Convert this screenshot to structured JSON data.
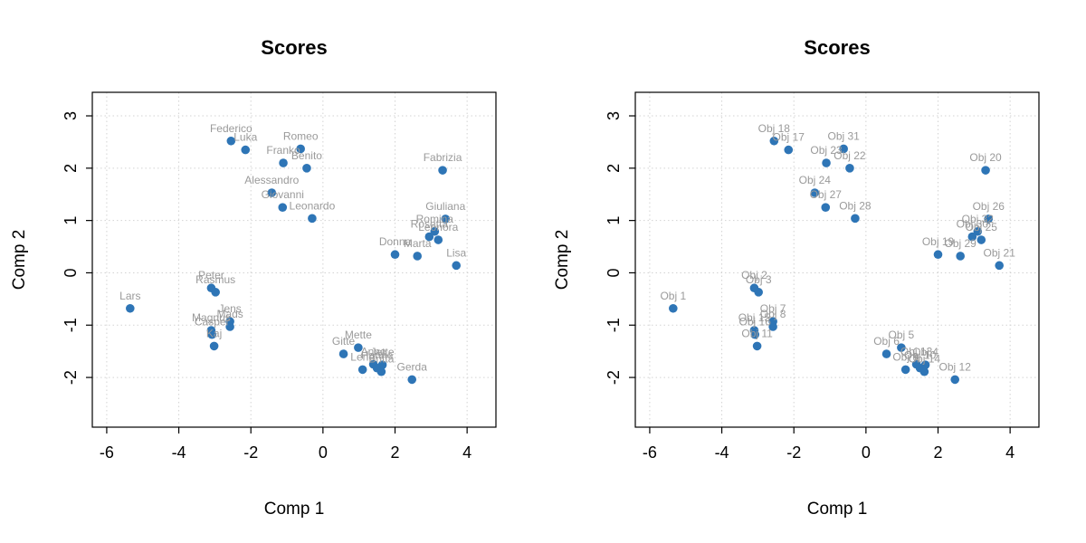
{
  "chart_data": [
    {
      "type": "scatter",
      "title": "Scores",
      "xlabel": "Comp 1",
      "ylabel": "Comp 2",
      "xlim": [
        -6.4,
        4.8
      ],
      "ylim": [
        -2.95,
        3.45
      ],
      "xticks": [
        -6,
        -4,
        -2,
        0,
        2,
        4
      ],
      "yticks": [
        -2,
        -1,
        0,
        1,
        2,
        3
      ],
      "grid": true,
      "point_color": "#2e75b6",
      "label_color": "#9a9a9a",
      "points": [
        {
          "label": "Lars",
          "x": -5.35,
          "y": -0.68
        },
        {
          "label": "Peter",
          "x": -3.1,
          "y": -0.29
        },
        {
          "label": "Rasmus",
          "x": -2.98,
          "y": -0.37
        },
        {
          "label": "Jens",
          "x": -2.58,
          "y": -0.93
        },
        {
          "label": "Mads",
          "x": -2.58,
          "y": -1.03
        },
        {
          "label": "Magnus",
          "x": -3.1,
          "y": -1.1
        },
        {
          "label": "Casper",
          "x": -3.08,
          "y": -1.18
        },
        {
          "label": "Kaj",
          "x": -3.02,
          "y": -1.4
        },
        {
          "label": "Federico",
          "x": -2.55,
          "y": 2.52
        },
        {
          "label": "Luka",
          "x": -2.15,
          "y": 2.35
        },
        {
          "label": "Romeo",
          "x": -0.62,
          "y": 2.37
        },
        {
          "label": "Franko",
          "x": -1.1,
          "y": 2.1
        },
        {
          "label": "Benito",
          "x": -0.45,
          "y": 2.0
        },
        {
          "label": "Alessandro",
          "x": -1.42,
          "y": 1.53
        },
        {
          "label": "Giovanni",
          "x": -1.12,
          "y": 1.25
        },
        {
          "label": "Leonardo",
          "x": -0.3,
          "y": 1.04
        },
        {
          "label": "Fabrizia",
          "x": 3.32,
          "y": 1.96
        },
        {
          "label": "Giuliana",
          "x": 3.4,
          "y": 1.03
        },
        {
          "label": "Romina",
          "x": 3.1,
          "y": 0.79
        },
        {
          "label": "Rosetta",
          "x": 2.95,
          "y": 0.69
        },
        {
          "label": "Leonora",
          "x": 3.2,
          "y": 0.63
        },
        {
          "label": "Donna",
          "x": 2.0,
          "y": 0.35
        },
        {
          "label": "Marta",
          "x": 2.62,
          "y": 0.32
        },
        {
          "label": "Lisa",
          "x": 3.7,
          "y": 0.14
        },
        {
          "label": "Mette",
          "x": 0.98,
          "y": -1.43
        },
        {
          "label": "Gitte",
          "x": 0.57,
          "y": -1.55
        },
        {
          "label": "Anne",
          "x": 1.4,
          "y": -1.75
        },
        {
          "label": "Lene",
          "x": 1.1,
          "y": -1.85
        },
        {
          "label": "Hanne",
          "x": 1.5,
          "y": -1.82
        },
        {
          "label": "Jette",
          "x": 1.65,
          "y": -1.76
        },
        {
          "label": "Britta",
          "x": 1.62,
          "y": -1.89
        },
        {
          "label": "Gerda",
          "x": 2.47,
          "y": -2.04
        }
      ]
    },
    {
      "type": "scatter",
      "title": "Scores",
      "xlabel": "Comp 1",
      "ylabel": "Comp 2",
      "xlim": [
        -6.4,
        4.8
      ],
      "ylim": [
        -2.95,
        3.45
      ],
      "xticks": [
        -6,
        -4,
        -2,
        0,
        2,
        4
      ],
      "yticks": [
        -2,
        -1,
        0,
        1,
        2,
        3
      ],
      "grid": true,
      "point_color": "#2e75b6",
      "label_color": "#9a9a9a",
      "points": [
        {
          "label": "Obj 1",
          "x": -5.35,
          "y": -0.68
        },
        {
          "label": "Obj 2",
          "x": -3.1,
          "y": -0.29
        },
        {
          "label": "Obj 3",
          "x": -2.98,
          "y": -0.37
        },
        {
          "label": "Obj 7",
          "x": -2.58,
          "y": -0.93
        },
        {
          "label": "Obj 8",
          "x": -2.58,
          "y": -1.03
        },
        {
          "label": "Obj 15",
          "x": -3.1,
          "y": -1.1
        },
        {
          "label": "Obj 16",
          "x": -3.08,
          "y": -1.18
        },
        {
          "label": "Obj 11",
          "x": -3.02,
          "y": -1.4
        },
        {
          "label": "Obj 18",
          "x": -2.55,
          "y": 2.52
        },
        {
          "label": "Obj 17",
          "x": -2.15,
          "y": 2.35
        },
        {
          "label": "Obj 31",
          "x": -0.62,
          "y": 2.37
        },
        {
          "label": "Obj 23",
          "x": -1.1,
          "y": 2.1
        },
        {
          "label": "Obj 22",
          "x": -0.45,
          "y": 2.0
        },
        {
          "label": "Obj 24",
          "x": -1.42,
          "y": 1.53
        },
        {
          "label": "Obj 27",
          "x": -1.12,
          "y": 1.25
        },
        {
          "label": "Obj 28",
          "x": -0.3,
          "y": 1.04
        },
        {
          "label": "Obj 20",
          "x": 3.32,
          "y": 1.96
        },
        {
          "label": "Obj 26",
          "x": 3.4,
          "y": 1.03
        },
        {
          "label": "Obj 32",
          "x": 3.1,
          "y": 0.79
        },
        {
          "label": "Obj 30",
          "x": 2.95,
          "y": 0.69
        },
        {
          "label": "Obj 25",
          "x": 3.2,
          "y": 0.63
        },
        {
          "label": "Obj 19",
          "x": 2.0,
          "y": 0.35
        },
        {
          "label": "Obj 29",
          "x": 2.62,
          "y": 0.32
        },
        {
          "label": "Obj 21",
          "x": 3.7,
          "y": 0.14
        },
        {
          "label": "Obj 5",
          "x": 0.98,
          "y": -1.43
        },
        {
          "label": "Obj 6",
          "x": 0.57,
          "y": -1.55
        },
        {
          "label": "Obj 13",
          "x": 1.4,
          "y": -1.75
        },
        {
          "label": "Obj 9",
          "x": 1.1,
          "y": -1.85
        },
        {
          "label": "Obj 10",
          "x": 1.5,
          "y": -1.82
        },
        {
          "label": "Obj 4",
          "x": 1.65,
          "y": -1.76
        },
        {
          "label": "Obj 14",
          "x": 1.62,
          "y": -1.89
        },
        {
          "label": "Obj 12",
          "x": 2.47,
          "y": -2.04
        }
      ]
    }
  ]
}
